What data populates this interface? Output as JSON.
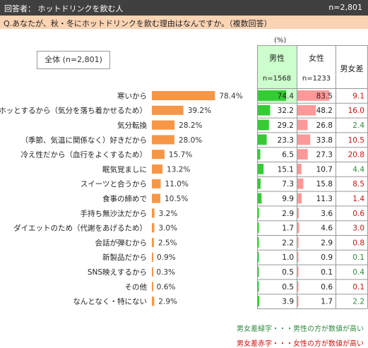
{
  "header": {
    "left": "回答者： ホットドリンクを飲む人",
    "right": "n=2,801"
  },
  "question": "Q.あなたが、秋・冬にホットドリンクを飲む理由はなんですか。（複数回答）",
  "unit": "(%)",
  "legend_label": "全体 (n=2,801)",
  "table_headers": {
    "male": "男性",
    "male_n": "n=1568",
    "female": "女性",
    "female_n": "n=1233",
    "diff": "男女差"
  },
  "notes": {
    "green": "男女差緑字・・・男性の方が数値が高い",
    "red": "男女差赤字・・・女性の方が数値が高い"
  },
  "colors": {
    "overall_bar": "#f79646",
    "male_bar": "#33cc33",
    "female_bar": "#ff9999",
    "highlight_cell": "#ccffcc",
    "diff_green": "#2e8b3c",
    "diff_red": "#d01010"
  },
  "chart_data": {
    "type": "bar",
    "categories": [
      "寒いから",
      "ホッとするから（気分を落ち着かせるため）",
      "気分転換",
      "（季節、気温に関係なく）好きだから",
      "冷え性だから（血行をよくするため）",
      "眠気覚ましに",
      "スイーツと合うから",
      "食事の締めで",
      "手持ち無沙汰だから",
      "ダイエットのため（代謝をあげるため）",
      "会話が弾むから",
      "新製品だから",
      "SNS映えするから",
      "その他",
      "なんとなく・特にない"
    ],
    "overall": [
      "78.4%",
      "39.2%",
      "28.2%",
      "28.0%",
      "15.7%",
      "13.2%",
      "11.0%",
      "10.5%",
      "3.2%",
      "3.0%",
      "2.5%",
      "0.9%",
      "0.3%",
      "0.6%",
      "2.9%"
    ],
    "male": [
      "74.4",
      "32.2",
      "29.2",
      "23.3",
      "6.5",
      "15.1",
      "7.3",
      "9.9",
      "2.9",
      "1.7",
      "2.2",
      "1.0",
      "0.5",
      "0.5",
      "3.9"
    ],
    "female": [
      "83.5",
      "48.2",
      "26.8",
      "33.8",
      "27.3",
      "10.7",
      "15.8",
      "11.3",
      "3.6",
      "4.6",
      "2.9",
      "0.9",
      "0.1",
      "0.6",
      "1.7"
    ],
    "diff": [
      "9.1",
      "16.0",
      "2.4",
      "10.5",
      "20.8",
      "4.4",
      "8.5",
      "1.4",
      "0.6",
      "3.0",
      "0.8",
      "0.1",
      "0.4",
      "0.1",
      "2.2"
    ],
    "diff_higher": [
      "F",
      "F",
      "M",
      "F",
      "F",
      "M",
      "F",
      "F",
      "F",
      "F",
      "F",
      "M",
      "M",
      "F",
      "M"
    ]
  }
}
